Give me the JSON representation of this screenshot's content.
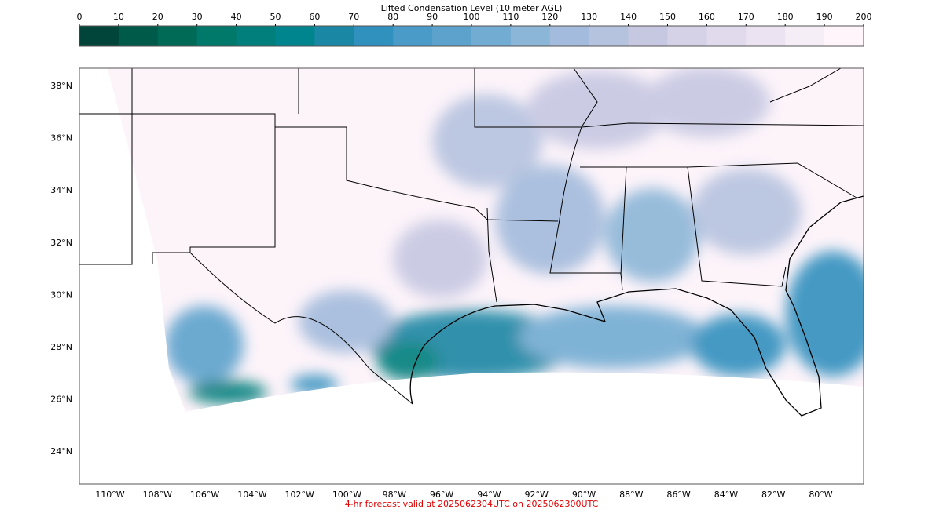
{
  "colorbar": {
    "title": "Lifted Condensation Level (10 meter AGL)",
    "clim": [
      0,
      200
    ],
    "ticks": [
      0,
      10,
      20,
      30,
      40,
      50,
      60,
      70,
      80,
      90,
      100,
      110,
      120,
      130,
      140,
      150,
      160,
      170,
      180,
      190,
      200
    ],
    "colors": [
      "#00443a",
      "#005a4a",
      "#006a56",
      "#00786a",
      "#007f7c",
      "#00858e",
      "#1a87a4",
      "#3090be",
      "#4a9bc8",
      "#5da2cc",
      "#72acd2",
      "#8bb6d7",
      "#a3bbdc",
      "#b6c3df",
      "#c6c8e2",
      "#d5d2e8",
      "#e1d9ec",
      "#ebe3f1",
      "#f5eef6",
      "#fff5fb"
    ]
  },
  "map": {
    "lat_labels": [
      "38°N",
      "36°N",
      "34°N",
      "32°N",
      "30°N",
      "28°N",
      "26°N",
      "24°N"
    ],
    "lon_labels": [
      "110°W",
      "108°W",
      "106°W",
      "104°W",
      "102°W",
      "100°W",
      "98°W",
      "96°W",
      "94°W",
      "92°W",
      "90°W",
      "88°W",
      "86°W",
      "84°W",
      "82°W",
      "80°W"
    ]
  },
  "footer": "4-hr forecast valid at 2025062304UTC on 2025062300UTC"
}
